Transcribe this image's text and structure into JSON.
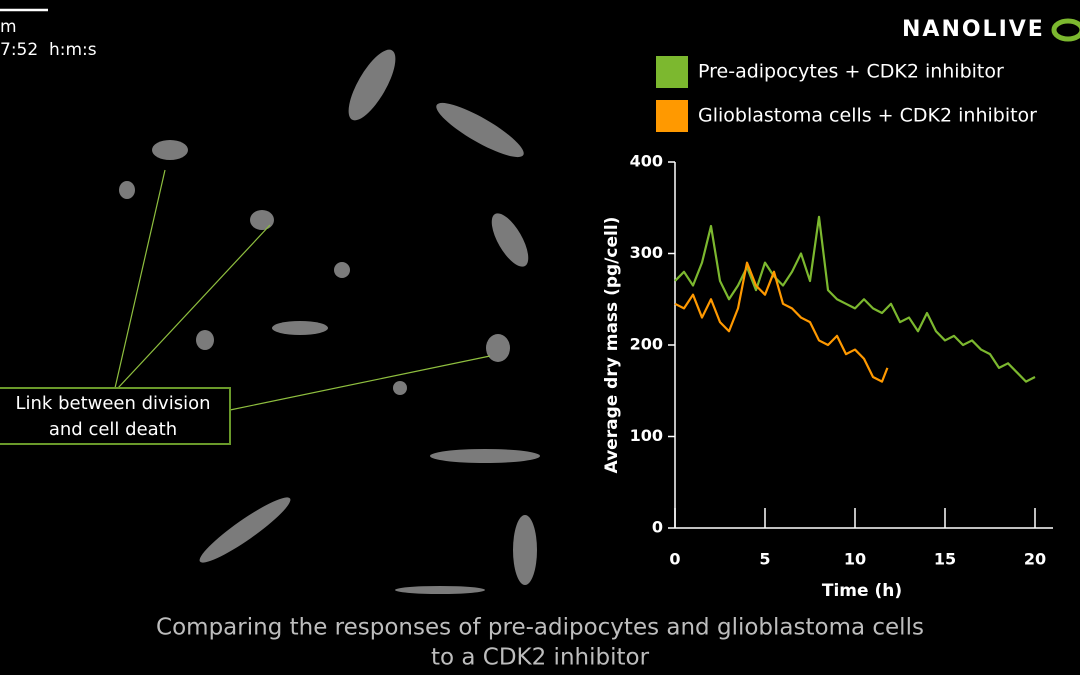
{
  "overlay": {
    "scale_label": "m",
    "timestamp": "7:52  h:m:s",
    "logo": "NANOLIVE",
    "annotation": [
      "Link between division",
      "and cell death"
    ],
    "caption": [
      "Comparing the responses of pre-adipocytes and glioblastoma cells",
      "to a CDK2 inhibitor"
    ]
  },
  "chart_data": {
    "type": "line",
    "x_label": "Time (h)",
    "y_label": "Average dry mass (pg/cell)",
    "xlim": [
      0,
      21
    ],
    "ylim": [
      0,
      400
    ],
    "xticks": [
      0,
      5,
      10,
      15,
      20
    ],
    "yticks": [
      0,
      100,
      200,
      300,
      400
    ],
    "series": [
      {
        "name": "Pre-adipocytes + CDK2 inhibitor",
        "color": "#7cb82f",
        "x": [
          0,
          0.5,
          1,
          1.5,
          2,
          2.5,
          3,
          3.5,
          4,
          4.5,
          5,
          5.5,
          6,
          6.5,
          7,
          7.5,
          8,
          8.5,
          9,
          9.5,
          10,
          10.5,
          11,
          11.5,
          12,
          12.5,
          13,
          13.5,
          14,
          14.5,
          15,
          15.5,
          16,
          16.5,
          17,
          17.5,
          18,
          18.5,
          19,
          19.5,
          20
        ],
        "values": [
          270,
          280,
          265,
          290,
          330,
          270,
          250,
          265,
          285,
          260,
          290,
          275,
          265,
          280,
          300,
          270,
          340,
          260,
          250,
          245,
          240,
          250,
          240,
          235,
          245,
          225,
          230,
          215,
          235,
          215,
          205,
          210,
          200,
          205,
          195,
          190,
          175,
          180,
          170,
          160,
          165
        ]
      },
      {
        "name": "Glioblastoma cells + CDK2 inhibitor",
        "color": "#ff9900",
        "x": [
          0,
          0.5,
          1,
          1.5,
          2,
          2.5,
          3,
          3.5,
          4,
          4.5,
          5,
          5.5,
          6,
          6.5,
          7,
          7.5,
          8,
          8.5,
          9,
          9.5,
          10,
          10.5,
          11,
          11.5,
          11.8
        ],
        "values": [
          245,
          240,
          255,
          230,
          250,
          225,
          215,
          240,
          290,
          265,
          255,
          280,
          245,
          240,
          230,
          225,
          205,
          200,
          210,
          190,
          195,
          185,
          165,
          160,
          175
        ]
      }
    ]
  }
}
